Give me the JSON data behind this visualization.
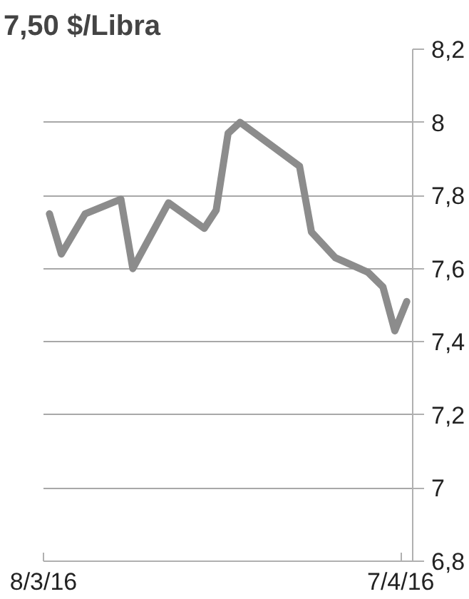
{
  "chart_data": {
    "type": "line",
    "title": "7,50 $/Libra",
    "x": [
      "2016-03-08T12:00",
      "2016-03-09T12:00",
      "2016-03-11T12:00",
      "2016-03-14T12:00",
      "2016-03-15T12:00",
      "2016-03-18T12:00",
      "2016-03-21T12:00",
      "2016-03-22T12:00",
      "2016-03-23T12:00",
      "2016-03-24T12:00",
      "2016-03-29T12:00",
      "2016-03-30T12:00",
      "2016-04-01T12:00",
      "2016-04-04T06:00",
      "2016-04-05T12:00",
      "2016-04-06T12:00",
      "2016-04-07T12:00"
    ],
    "series": [
      {
        "color": "#8c8c8c",
        "values": [
          7.75,
          7.64,
          7.75,
          7.79,
          7.6,
          7.78,
          7.71,
          7.76,
          7.97,
          8.0,
          7.88,
          7.7,
          7.63,
          7.59,
          7.55,
          7.43,
          7.51
        ]
      }
    ],
    "xlim": [
      "2016-03-08",
      "2016-04-08"
    ],
    "xticks": [
      {
        "value": "2016-03-08",
        "label": "8/3/16"
      },
      {
        "value": "2016-04-07",
        "label": "7/4/16"
      }
    ],
    "ylim": [
      6.8,
      8.2
    ],
    "yticks": [
      {
        "value": 6.8,
        "label": "6,8"
      },
      7,
      {
        "value": 7.2,
        "label": "7,2"
      },
      {
        "value": 7.4,
        "label": "7,4"
      },
      {
        "value": 7.6,
        "label": "7,6"
      },
      {
        "value": 7.8,
        "label": "7,8"
      },
      8,
      {
        "value": 8.2,
        "label": "8,2"
      }
    ],
    "grid": "y",
    "marker": "none",
    "line_style": "solid"
  }
}
